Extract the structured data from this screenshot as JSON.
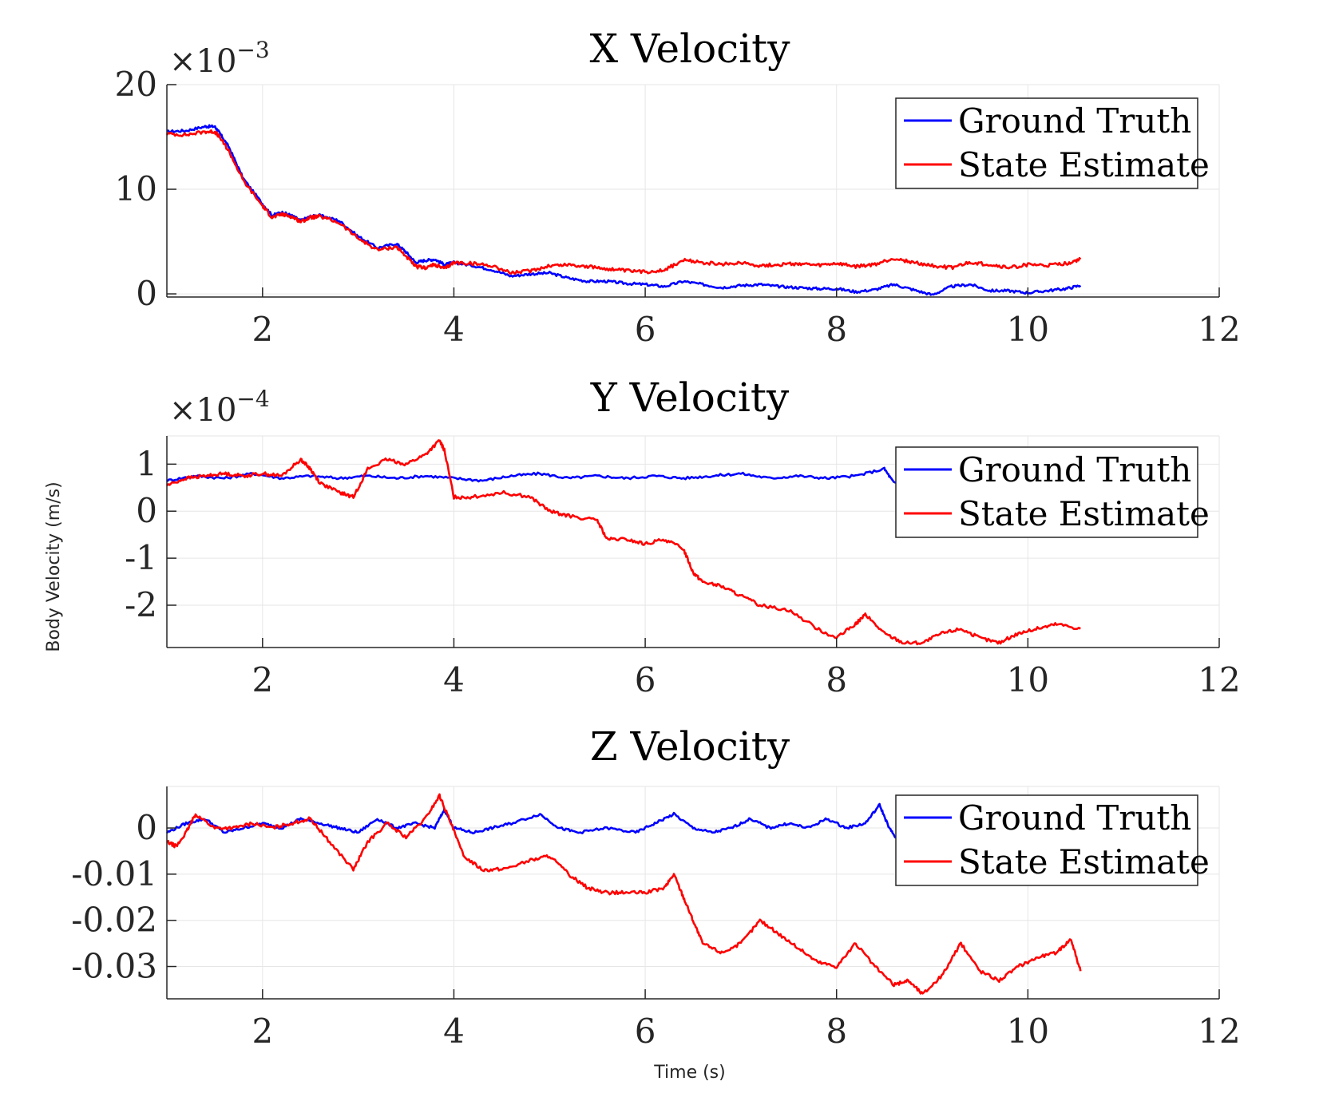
{
  "figure": {
    "ylabel": "Body Velocity (m/s)",
    "xlabel": "Time (s)"
  },
  "colors": {
    "ground_truth": "#0000ff",
    "state_estimate": "#ff0000",
    "grid": "#e6e6e6",
    "axis": "#262626"
  },
  "chart_data": [
    {
      "type": "line",
      "title": "X Velocity",
      "multiplier": "×10",
      "exponent": "−3",
      "xlim": [
        1,
        12
      ],
      "ylim": [
        -0.3,
        20
      ],
      "xticks": [
        2,
        4,
        6,
        8,
        10,
        12
      ],
      "yticks": [
        0,
        10,
        20
      ],
      "ytick_labels": [
        "0",
        "10",
        "20"
      ],
      "grid": true,
      "legend": "top-right",
      "series": [
        {
          "name": "Ground Truth",
          "color": "#0000ff",
          "x": [
            1.0,
            1.2,
            1.4,
            1.5,
            1.55,
            1.65,
            1.8,
            2.0,
            2.1,
            2.2,
            2.3,
            2.4,
            2.5,
            2.6,
            2.8,
            3.0,
            3.2,
            3.4,
            3.5,
            3.6,
            3.7,
            3.8,
            3.9,
            4.0,
            4.2,
            4.4,
            4.6,
            4.8,
            5.0,
            5.2,
            5.4,
            5.6,
            5.8,
            6.0,
            6.2,
            6.4,
            6.6,
            6.8,
            7.0,
            7.2,
            7.4,
            7.6,
            7.8,
            8.0,
            8.2,
            8.4,
            8.6,
            8.8,
            9.0,
            9.2,
            9.4,
            9.6,
            9.8,
            10.0,
            10.2,
            10.4,
            10.55
          ],
          "y": [
            15.5,
            15.6,
            16.0,
            16.0,
            15.4,
            14.0,
            11.0,
            8.6,
            7.5,
            7.8,
            7.5,
            7.0,
            7.4,
            7.5,
            7.0,
            5.5,
            4.4,
            4.8,
            4.0,
            3.0,
            3.2,
            3.3,
            2.8,
            3.0,
            2.7,
            2.3,
            1.7,
            1.9,
            2.0,
            1.5,
            1.2,
            1.2,
            1.0,
            0.9,
            0.7,
            1.2,
            0.9,
            0.6,
            0.8,
            0.9,
            0.7,
            0.6,
            0.5,
            0.5,
            0.2,
            0.4,
            0.9,
            0.4,
            -0.1,
            0.7,
            0.9,
            0.3,
            0.3,
            0.1,
            0.3,
            0.5,
            0.8
          ]
        },
        {
          "name": "State Estimate",
          "color": "#ff0000",
          "x": [
            1.0,
            1.2,
            1.4,
            1.5,
            1.55,
            1.65,
            1.8,
            2.0,
            2.1,
            2.2,
            2.3,
            2.4,
            2.5,
            2.6,
            2.8,
            3.0,
            3.2,
            3.4,
            3.5,
            3.6,
            3.7,
            3.8,
            3.9,
            4.0,
            4.2,
            4.4,
            4.6,
            4.8,
            5.0,
            5.2,
            5.4,
            5.6,
            5.8,
            6.0,
            6.2,
            6.4,
            6.6,
            6.8,
            7.0,
            7.2,
            7.4,
            7.6,
            7.8,
            8.0,
            8.2,
            8.4,
            8.6,
            8.8,
            9.0,
            9.2,
            9.4,
            9.6,
            9.8,
            10.0,
            10.2,
            10.4,
            10.55
          ],
          "y": [
            15.3,
            15.2,
            15.5,
            15.5,
            15.0,
            13.6,
            10.8,
            8.4,
            7.3,
            7.6,
            7.4,
            6.9,
            7.3,
            7.4,
            6.8,
            5.3,
            4.2,
            4.5,
            3.6,
            2.6,
            2.5,
            2.8,
            2.4,
            3.0,
            2.9,
            2.7,
            2.0,
            2.2,
            2.7,
            2.8,
            2.6,
            2.4,
            2.2,
            2.1,
            2.3,
            3.2,
            3.0,
            2.8,
            3.0,
            2.7,
            2.8,
            2.9,
            2.7,
            2.9,
            2.6,
            2.8,
            3.4,
            3.0,
            2.7,
            2.5,
            3.0,
            2.8,
            2.5,
            2.8,
            2.7,
            2.9,
            3.3
          ]
        }
      ]
    },
    {
      "type": "line",
      "title": "Y Velocity",
      "multiplier": "×10",
      "exponent": "−4",
      "xlim": [
        1,
        12
      ],
      "ylim": [
        -2.9,
        1.6
      ],
      "xticks": [
        2,
        4,
        6,
        8,
        10,
        12
      ],
      "yticks": [
        -2,
        -1,
        0,
        1
      ],
      "ytick_labels": [
        "-2",
        "-1",
        "0",
        "1"
      ],
      "grid": true,
      "legend": "top-right",
      "series": [
        {
          "name": "Ground Truth",
          "color": "#0000ff",
          "x": [
            1.0,
            1.3,
            1.6,
            1.9,
            2.2,
            2.5,
            2.8,
            3.1,
            3.4,
            3.7,
            4.0,
            4.3,
            4.6,
            4.9,
            5.2,
            5.5,
            5.8,
            6.1,
            6.4,
            6.7,
            7.0,
            7.3,
            7.6,
            7.9,
            8.2,
            8.5,
            8.6,
            8.8,
            9.1,
            9.4,
            9.7,
            10.0,
            10.3,
            10.55
          ],
          "y": [
            0.65,
            0.75,
            0.7,
            0.8,
            0.7,
            0.75,
            0.7,
            0.75,
            0.7,
            0.75,
            0.7,
            0.65,
            0.75,
            0.8,
            0.7,
            0.75,
            0.7,
            0.75,
            0.7,
            0.75,
            0.8,
            0.7,
            0.75,
            0.7,
            0.75,
            0.9,
            0.6,
            0.7,
            0.75,
            0.7,
            0.75,
            0.8,
            0.7,
            0.75
          ]
        },
        {
          "name": "State Estimate",
          "color": "#ff0000",
          "x": [
            1.0,
            1.2,
            1.4,
            1.6,
            1.8,
            2.0,
            2.2,
            2.4,
            2.5,
            2.6,
            2.8,
            2.95,
            3.1,
            3.3,
            3.5,
            3.7,
            3.85,
            3.9,
            4.0,
            4.2,
            4.5,
            4.8,
            5.0,
            5.2,
            5.5,
            5.6,
            5.8,
            6.0,
            6.2,
            6.4,
            6.5,
            6.6,
            6.8,
            7.0,
            7.2,
            7.5,
            7.8,
            8.0,
            8.2,
            8.3,
            8.5,
            8.7,
            8.9,
            9.1,
            9.3,
            9.5,
            9.7,
            9.9,
            10.1,
            10.3,
            10.55
          ],
          "y": [
            0.55,
            0.7,
            0.75,
            0.8,
            0.75,
            0.8,
            0.75,
            1.1,
            0.9,
            0.6,
            0.4,
            0.3,
            0.9,
            1.1,
            1.0,
            1.2,
            1.5,
            1.3,
            0.3,
            0.3,
            0.4,
            0.3,
            0.0,
            -0.1,
            -0.2,
            -0.6,
            -0.6,
            -0.7,
            -0.6,
            -0.8,
            -1.3,
            -1.5,
            -1.6,
            -1.8,
            -2.0,
            -2.1,
            -2.5,
            -2.7,
            -2.4,
            -2.2,
            -2.6,
            -2.8,
            -2.8,
            -2.6,
            -2.5,
            -2.7,
            -2.8,
            -2.6,
            -2.5,
            -2.4,
            -2.5
          ]
        }
      ]
    },
    {
      "type": "line",
      "title": "Z Velocity",
      "xlim": [
        1,
        12
      ],
      "ylim": [
        -0.037,
        0.009
      ],
      "xticks": [
        2,
        4,
        6,
        8,
        10,
        12
      ],
      "yticks": [
        -0.03,
        -0.02,
        -0.01,
        0
      ],
      "ytick_labels": [
        "-0.03",
        "-0.02",
        "-0.01",
        "0"
      ],
      "grid": true,
      "legend": "top-right",
      "series": [
        {
          "name": "Ground Truth",
          "color": "#0000ff",
          "x": [
            1.0,
            1.2,
            1.4,
            1.6,
            1.8,
            2.0,
            2.2,
            2.4,
            2.6,
            2.8,
            3.0,
            3.2,
            3.4,
            3.6,
            3.8,
            3.9,
            4.0,
            4.2,
            4.4,
            4.6,
            4.9,
            5.1,
            5.3,
            5.6,
            5.9,
            6.1,
            6.3,
            6.5,
            6.7,
            6.9,
            7.1,
            7.3,
            7.5,
            7.7,
            7.9,
            8.1,
            8.3,
            8.45,
            8.55,
            8.65,
            8.8,
            9.1,
            9.4,
            9.7,
            10.0,
            10.3,
            10.55
          ],
          "y": [
            -0.001,
            0.001,
            0.002,
            -0.001,
            0.0,
            0.001,
            0.0,
            0.002,
            0.001,
            0.0,
            -0.001,
            0.002,
            0.0,
            0.001,
            0.0,
            0.004,
            0.0,
            -0.001,
            0.0,
            0.001,
            0.003,
            0.0,
            -0.001,
            0.0,
            -0.001,
            0.001,
            0.003,
            0.0,
            -0.001,
            0.0,
            0.002,
            0.0,
            0.001,
            0.0,
            0.002,
            0.0,
            0.001,
            0.005,
            0.0,
            -0.003,
            0.0,
            0.001,
            0.0,
            0.001,
            0.0,
            0.001,
            0.0
          ]
        },
        {
          "name": "State Estimate",
          "color": "#ff0000",
          "x": [
            1.0,
            1.1,
            1.2,
            1.3,
            1.5,
            1.7,
            1.9,
            2.1,
            2.3,
            2.5,
            2.7,
            2.95,
            3.1,
            3.3,
            3.5,
            3.7,
            3.85,
            3.95,
            4.1,
            4.3,
            4.5,
            4.8,
            5.0,
            5.2,
            5.4,
            5.6,
            5.8,
            6.0,
            6.2,
            6.3,
            6.4,
            6.5,
            6.6,
            6.8,
            7.0,
            7.2,
            7.4,
            7.6,
            7.8,
            8.0,
            8.2,
            8.4,
            8.6,
            8.75,
            8.9,
            9.1,
            9.3,
            9.5,
            9.7,
            9.9,
            10.1,
            10.3,
            10.45,
            10.55
          ],
          "y": [
            -0.003,
            -0.004,
            -0.001,
            0.003,
            0.0,
            0.0,
            0.001,
            0.0,
            0.001,
            0.002,
            -0.003,
            -0.009,
            -0.003,
            0.001,
            -0.002,
            0.002,
            0.007,
            0.002,
            -0.006,
            -0.009,
            -0.009,
            -0.007,
            -0.006,
            -0.01,
            -0.013,
            -0.014,
            -0.014,
            -0.014,
            -0.013,
            -0.01,
            -0.015,
            -0.02,
            -0.025,
            -0.027,
            -0.025,
            -0.02,
            -0.023,
            -0.026,
            -0.029,
            -0.03,
            -0.025,
            -0.03,
            -0.034,
            -0.033,
            -0.036,
            -0.032,
            -0.025,
            -0.031,
            -0.033,
            -0.03,
            -0.028,
            -0.027,
            -0.024,
            -0.031
          ]
        }
      ]
    }
  ]
}
